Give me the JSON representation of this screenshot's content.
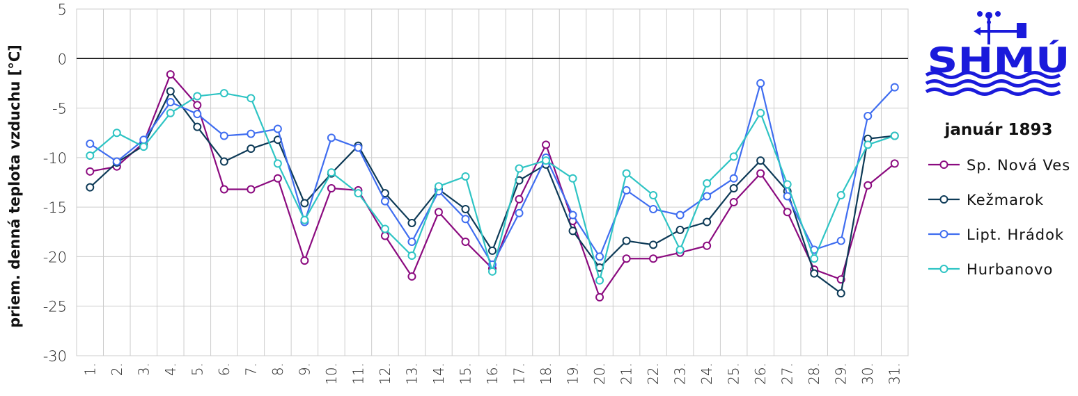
{
  "logo": {
    "text": "SHMÚ",
    "color": "#1a1adb"
  },
  "legend_title": "január 1893",
  "colors": {
    "Sp. Nová Ves": "#8b0a7f",
    "Kežmarok": "#0d3a57",
    "Lipt. Hrádok": "#3f6df0",
    "Hurbanovo": "#2ec4c4",
    "grid": "#cccccc",
    "zero_line": "#000000"
  },
  "chart_data": {
    "type": "line",
    "ylabel": "priem. denná teplota vzduchu [°C]",
    "ylim": [
      -30,
      5
    ],
    "yticks": [
      5,
      0,
      -5,
      -10,
      -15,
      -20,
      -25,
      -30
    ],
    "ytick_labels": [
      "5",
      "0",
      "-5",
      "-10",
      "-15",
      "-20",
      "-25",
      "-30"
    ],
    "categories": [
      "1.",
      "2.",
      "3.",
      "4.",
      "5.",
      "6.",
      "7.",
      "8.",
      "9.",
      "10.",
      "11.",
      "12.",
      "13.",
      "14.",
      "15.",
      "16.",
      "17.",
      "18.",
      "19.",
      "20.",
      "21.",
      "22.",
      "23.",
      "24.",
      "25.",
      "26.",
      "27.",
      "28.",
      "29.",
      "30.",
      "31."
    ],
    "grid": true,
    "legend_position": "right",
    "series": [
      {
        "name": "Sp. Nová Ves",
        "values": [
          -11.4,
          -10.9,
          -8.5,
          -1.6,
          -4.7,
          -13.2,
          -13.2,
          -12.1,
          -20.4,
          -13.1,
          -13.3,
          -17.9,
          -22.0,
          -15.5,
          -18.5,
          -21.2,
          -14.2,
          -8.7,
          -16.4,
          -24.1,
          -20.2,
          -20.2,
          -19.6,
          -18.9,
          -14.5,
          -11.6,
          -15.5,
          -21.3,
          -22.3,
          -12.8,
          -10.6
        ]
      },
      {
        "name": "Kežmarok",
        "values": [
          -13.0,
          -10.5,
          -8.8,
          -3.3,
          -6.9,
          -10.4,
          -9.1,
          -8.2,
          -14.6,
          -11.6,
          -8.8,
          -13.6,
          -16.6,
          -13.2,
          -15.2,
          -19.4,
          -12.3,
          -10.7,
          -17.4,
          -21.1,
          -18.4,
          -18.8,
          -17.3,
          -16.5,
          -13.1,
          -10.3,
          -13.4,
          -21.7,
          -23.7,
          -8.1,
          -7.8
        ]
      },
      {
        "name": "Lipt. Hrádok",
        "values": [
          -8.6,
          -10.4,
          -8.2,
          -4.4,
          -5.6,
          -7.8,
          -7.6,
          -7.1,
          -16.5,
          -8.0,
          -9.0,
          -14.4,
          -18.5,
          -13.4,
          -16.2,
          -20.8,
          -15.6,
          -10.0,
          -15.8,
          -20.0,
          -13.3,
          -15.2,
          -15.8,
          -13.9,
          -12.1,
          -2.5,
          -13.9,
          -19.3,
          -18.4,
          -5.8,
          -2.9
        ]
      },
      {
        "name": "Hurbanovo",
        "values": [
          -9.8,
          -7.5,
          -8.9,
          -5.5,
          -3.8,
          -3.5,
          -4.0,
          -10.6,
          -16.3,
          -11.5,
          -13.6,
          -17.2,
          -19.9,
          -12.9,
          -11.9,
          -21.5,
          -11.1,
          -10.3,
          -12.1,
          -22.4,
          -11.6,
          -13.8,
          -19.3,
          -12.6,
          -9.9,
          -5.5,
          -12.7,
          -20.2,
          -13.8,
          -8.7,
          -7.8
        ]
      }
    ]
  }
}
